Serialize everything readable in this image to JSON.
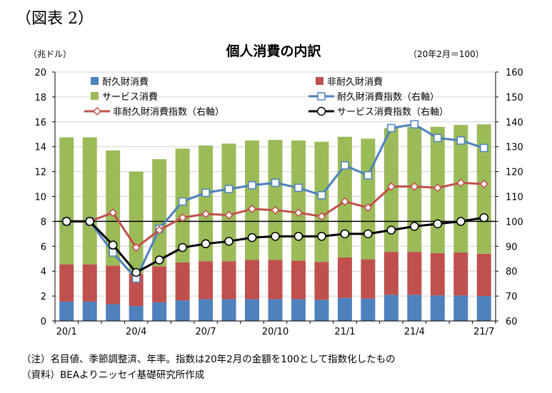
{
  "figure_label": "（図表 2）",
  "chart_data": {
    "type": "bar",
    "title": "個人消費の内訳",
    "ylabel_left": "（兆ドル）",
    "ylabel_right": "（20年2月＝100）",
    "ylim_left": [
      0,
      20
    ],
    "yticks_left": [
      0,
      2,
      4,
      6,
      8,
      10,
      12,
      14,
      16,
      18,
      20
    ],
    "ylim_right": [
      60,
      160
    ],
    "yticks_right": [
      60,
      70,
      80,
      90,
      100,
      110,
      120,
      130,
      140,
      150,
      160
    ],
    "categories": [
      "20/1",
      "20/2",
      "20/3",
      "20/4",
      "20/5",
      "20/6",
      "20/7",
      "20/8",
      "20/9",
      "20/10",
      "20/11",
      "20/12",
      "21/1",
      "21/2",
      "21/3",
      "21/4",
      "21/5",
      "21/6",
      "21/7"
    ],
    "x_tick_labels": [
      "20/1",
      "",
      "",
      "20/4",
      "",
      "",
      "20/7",
      "",
      "",
      "20/10",
      "",
      "",
      "21/1",
      "",
      "",
      "21/4",
      "",
      "",
      "21/7"
    ],
    "stacked_series": [
      {
        "name": "耐久財消費",
        "color": "#4f81bd",
        "values": [
          1.55,
          1.55,
          1.35,
          1.2,
          1.5,
          1.65,
          1.75,
          1.75,
          1.75,
          1.75,
          1.75,
          1.7,
          1.85,
          1.8,
          2.1,
          2.1,
          2.05,
          2.05,
          2.0
        ]
      },
      {
        "name": "非耐久財消費",
        "color": "#c0504d",
        "values": [
          3.0,
          3.0,
          3.1,
          2.6,
          2.9,
          3.05,
          3.05,
          3.05,
          3.15,
          3.15,
          3.1,
          3.05,
          3.25,
          3.15,
          3.45,
          3.45,
          3.4,
          3.45,
          3.4
        ]
      },
      {
        "name": "サービス消費",
        "color": "#9bbb59",
        "values": [
          10.2,
          10.2,
          9.25,
          8.2,
          8.6,
          9.15,
          9.3,
          9.45,
          9.6,
          9.65,
          9.65,
          9.65,
          9.7,
          9.7,
          9.95,
          10.05,
          10.15,
          10.25,
          10.4
        ]
      }
    ],
    "line_series": [
      {
        "name": "耐久財消費指数（右軸）",
        "color": "#4f81bd",
        "marker": "square",
        "values": [
          100,
          100,
          87.5,
          77,
          97,
          108,
          111.5,
          113,
          114.5,
          115.5,
          113.5,
          110.5,
          122.5,
          118.5,
          137.5,
          139,
          133.5,
          132.5,
          129.5
        ]
      },
      {
        "name": "非耐久財消費指数（右軸）",
        "color": "#c0504d",
        "marker": "diamond",
        "values": [
          100,
          100,
          103.5,
          89.5,
          96.5,
          101.5,
          103,
          102.5,
          105,
          104.5,
          103.5,
          102,
          108,
          105.5,
          114,
          114,
          113.5,
          115.5,
          115
        ]
      },
      {
        "name": "サービス消費指数（右軸）",
        "color": "#000000",
        "marker": "circle",
        "values": [
          100,
          100,
          90.5,
          79.5,
          84.5,
          89.5,
          91,
          92,
          93.5,
          94,
          94,
          94,
          95,
          95,
          96.5,
          98,
          99,
          100,
          101.5
        ]
      }
    ],
    "reference_line_right": 100,
    "legend_placement": "top, inside plot"
  },
  "notes": [
    "（注）名目値、季節調整済、年率。指数は20年2月の金額を100として指数化したもの",
    "（資料）BEAよりニッセイ基礎研究所作成"
  ]
}
